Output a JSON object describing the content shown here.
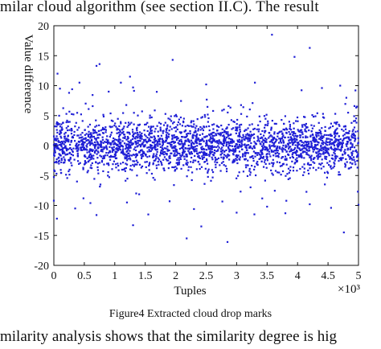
{
  "page": {
    "top_text": "milar cloud algorithm (see section II.C). The result",
    "caption": "Figure4 Extracted cloud drop marks",
    "bottom_text": "milarity analysis shows that the similarity degree is hig"
  },
  "chart_data": {
    "type": "scatter",
    "title": "",
    "xlabel": "Tuples",
    "ylabel": "Value difference",
    "x_multiplier_label": "×10³",
    "xlim": [
      0,
      5
    ],
    "ylim": [
      -20,
      20
    ],
    "x_ticks": [
      "0",
      "0.5",
      "1",
      "1.5",
      "2",
      "2.5",
      "3",
      "3.5",
      "4",
      "4.5",
      "5"
    ],
    "y_ticks": [
      "20",
      "15",
      "10",
      "5",
      "0",
      "-5",
      "-10",
      "-15",
      "-20"
    ],
    "grid": false,
    "marker_color": "#1f1fd6",
    "series": [
      {
        "points_summary": "about 5000 points, x from 0 to 5 (×10³), dense band y in [-5, 5], sparse outliers",
        "outliers": [
          [
            0.06,
            12.0
          ],
          [
            0.1,
            9.5
          ],
          [
            0.25,
            8.8
          ],
          [
            0.3,
            9.4
          ],
          [
            0.42,
            10.5
          ],
          [
            0.7,
            13.3
          ],
          [
            0.75,
            13.6
          ],
          [
            0.9,
            9.0
          ],
          [
            1.1,
            10.5
          ],
          [
            1.25,
            11.5
          ],
          [
            1.3,
            9.7
          ],
          [
            1.95,
            14.3
          ],
          [
            2.5,
            10.2
          ],
          [
            3.3,
            10.5
          ],
          [
            3.58,
            18.5
          ],
          [
            3.95,
            14.8
          ],
          [
            4.2,
            16.3
          ],
          [
            4.4,
            9.6
          ],
          [
            4.7,
            10.0
          ],
          [
            4.95,
            9.2
          ],
          [
            0.0,
            -9.2
          ],
          [
            0.05,
            -12.2
          ],
          [
            0.35,
            -10.5
          ],
          [
            0.6,
            -9.6
          ],
          [
            0.7,
            -11.6
          ],
          [
            1.2,
            -9.5
          ],
          [
            1.3,
            -13.3
          ],
          [
            1.55,
            -11.5
          ],
          [
            1.9,
            -9.3
          ],
          [
            2.18,
            -15.5
          ],
          [
            2.3,
            -10.6
          ],
          [
            2.42,
            -13.5
          ],
          [
            2.85,
            -16.1
          ],
          [
            3.0,
            -11.2
          ],
          [
            3.5,
            -10.2
          ],
          [
            3.8,
            -11.3
          ],
          [
            4.2,
            -9.8
          ],
          [
            4.55,
            -10.4
          ],
          [
            4.76,
            -14.5
          ],
          [
            5.0,
            -9.9
          ]
        ]
      }
    ]
  }
}
